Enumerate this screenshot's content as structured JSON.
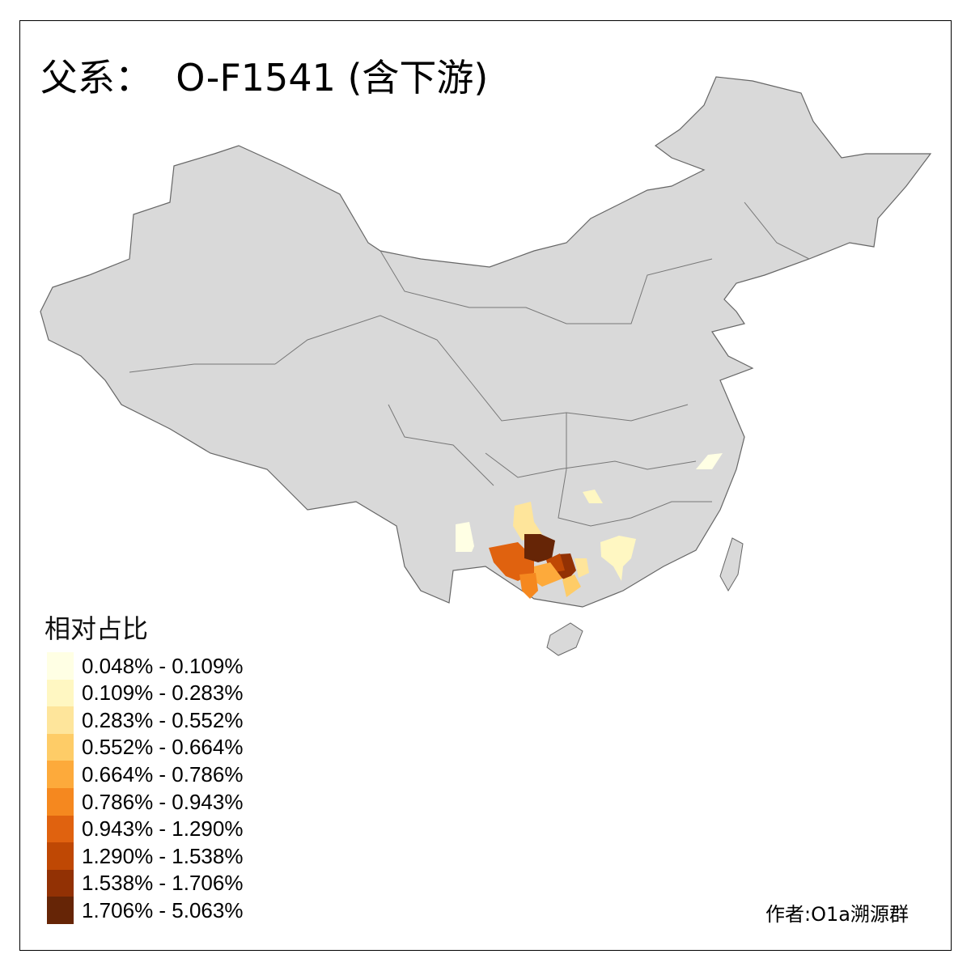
{
  "title": "父系：  O-F1541 (含下游)",
  "legend": {
    "title": "相对占比",
    "items": [
      {
        "label": "0.048% - 0.109%",
        "color": "#FFFFE4"
      },
      {
        "label": "0.109% - 0.283%",
        "color": "#FFF7C2"
      },
      {
        "label": "0.283% - 0.552%",
        "color": "#FEE59B"
      },
      {
        "label": "0.552% - 0.664%",
        "color": "#FECC67"
      },
      {
        "label": "0.664% - 0.786%",
        "color": "#FDAA3B"
      },
      {
        "label": "0.786% - 0.943%",
        "color": "#F5881F"
      },
      {
        "label": "0.943% - 1.290%",
        "color": "#E0620F"
      },
      {
        "label": "1.290% - 1.538%",
        "color": "#BF4804"
      },
      {
        "label": "1.538% - 1.706%",
        "color": "#923104"
      },
      {
        "label": "1.706% - 5.063%",
        "color": "#662506"
      }
    ]
  },
  "map": {
    "base_color": "#D9D9D9",
    "border_color": "#666666"
  },
  "author": "作者:O1a溯源群"
}
